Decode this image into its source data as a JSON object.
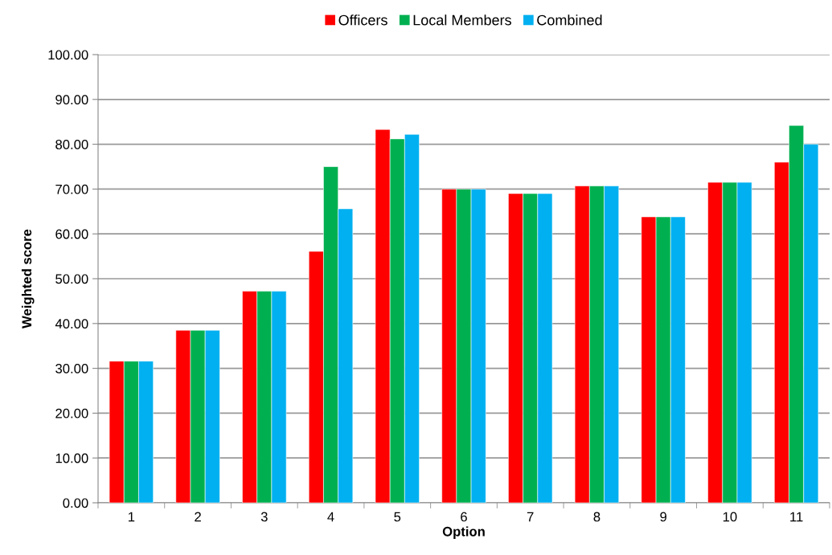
{
  "chart_data": {
    "type": "bar",
    "xlabel": "Option",
    "ylabel": "Weighted score",
    "categories": [
      "1",
      "2",
      "3",
      "4",
      "5",
      "6",
      "7",
      "8",
      "9",
      "10",
      "11"
    ],
    "series": [
      {
        "name": "Officers",
        "color": "#ff0000",
        "values": [
          31.6,
          38.5,
          47.2,
          56.1,
          83.3,
          70.0,
          69.0,
          70.7,
          63.8,
          71.5,
          76.0
        ]
      },
      {
        "name": "Local Members",
        "color": "#00b050",
        "values": [
          31.6,
          38.5,
          47.2,
          75.0,
          81.2,
          70.0,
          69.0,
          70.7,
          63.8,
          71.5,
          84.2
        ]
      },
      {
        "name": "Combined",
        "color": "#00b0f0",
        "values": [
          31.6,
          38.5,
          47.2,
          65.6,
          82.2,
          70.0,
          69.0,
          70.7,
          63.8,
          71.5,
          80.0
        ]
      }
    ],
    "ylim": [
      0,
      100
    ],
    "yticks": [
      {
        "value": 0,
        "label": "0.00"
      },
      {
        "value": 10,
        "label": "10.00"
      },
      {
        "value": 20,
        "label": "20.00"
      },
      {
        "value": 30,
        "label": "30.00"
      },
      {
        "value": 40,
        "label": "40.00"
      },
      {
        "value": 50,
        "label": "50.00"
      },
      {
        "value": 60,
        "label": "60.00"
      },
      {
        "value": 70,
        "label": "70.00"
      },
      {
        "value": 80,
        "label": "80.00"
      },
      {
        "value": 90,
        "label": "90.00"
      },
      {
        "value": 100,
        "label": "100.00"
      }
    ],
    "grid": "y",
    "legend": "top"
  }
}
